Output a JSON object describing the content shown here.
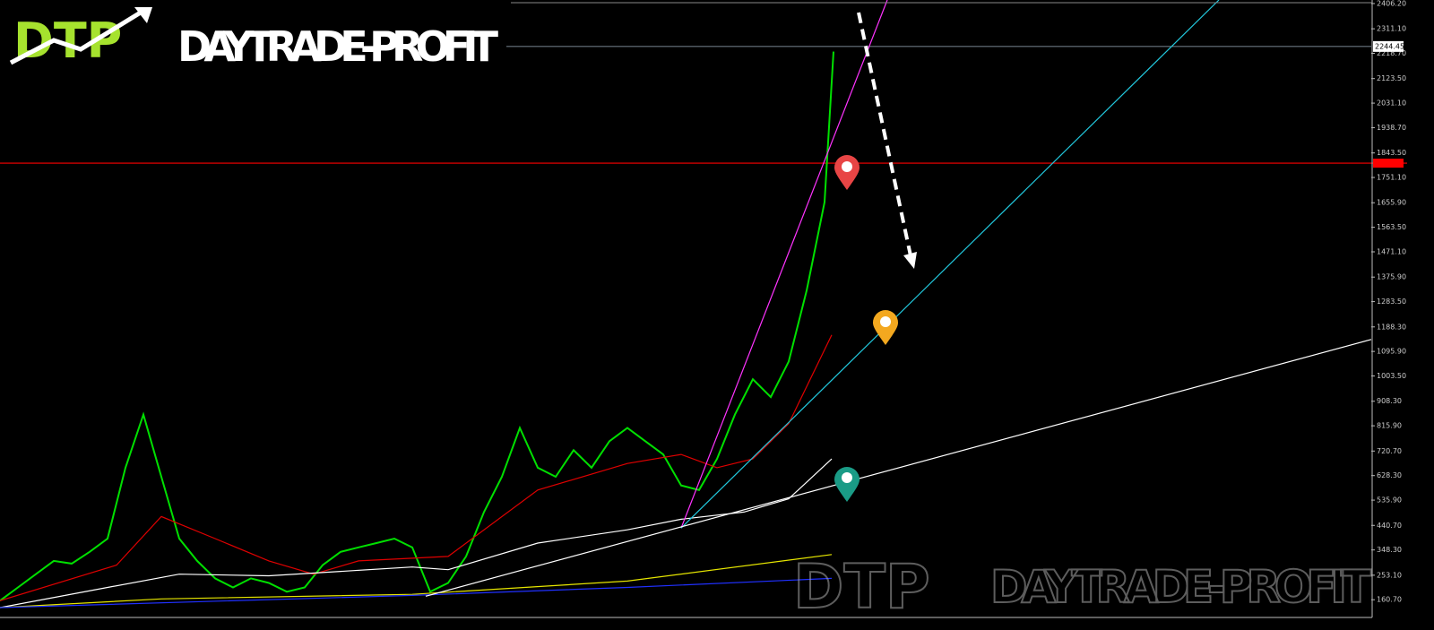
{
  "logo": {
    "mark": "DTP",
    "name": "DAYTRADE-PROFIT"
  },
  "watermark": {
    "mark": "DTP",
    "name": "DAYTRADE-PROFIT"
  },
  "chart_data": {
    "type": "line",
    "xlim": [
      0,
      76.5
    ],
    "ylim": [
      94,
      2419.5
    ],
    "yticks": [
      {
        "value": 2406.2,
        "label": "2406.20"
      },
      {
        "value": 2311.1,
        "label": "2311.10"
      },
      {
        "value": 2218.7,
        "label": "2218.70"
      },
      {
        "value": 2123.5,
        "label": "2123.50"
      },
      {
        "value": 2031.1,
        "label": "2031.10"
      },
      {
        "value": 1938.7,
        "label": "1938.70"
      },
      {
        "value": 1843.5,
        "label": "1843.50"
      },
      {
        "value": 1751.1,
        "label": "1751.10"
      },
      {
        "value": 1655.9,
        "label": "1655.90"
      },
      {
        "value": 1563.5,
        "label": "1563.50"
      },
      {
        "value": 1471.1,
        "label": "1471.10"
      },
      {
        "value": 1375.9,
        "label": "1375.90"
      },
      {
        "value": 1283.5,
        "label": "1283.50"
      },
      {
        "value": 1188.3,
        "label": "1188.30"
      },
      {
        "value": 1095.9,
        "label": "1095.90"
      },
      {
        "value": 1003.5,
        "label": "1003.50"
      },
      {
        "value": 908.3,
        "label": "908.30"
      },
      {
        "value": 815.9,
        "label": "815.90"
      },
      {
        "value": 720.7,
        "label": "720.70"
      },
      {
        "value": 628.3,
        "label": "628.30"
      },
      {
        "value": 535.9,
        "label": "535.90"
      },
      {
        "value": 440.7,
        "label": "440.70"
      },
      {
        "value": 348.3,
        "label": "348.30"
      },
      {
        "value": 253.1,
        "label": "253.10"
      },
      {
        "value": 160.7,
        "label": "160.70"
      }
    ],
    "current_price": 2244.45,
    "levels": [
      {
        "value": 1805,
        "color": "#ff0000"
      }
    ],
    "series": [
      {
        "color": "#00e000",
        "width": 2,
        "x": [
          0,
          1,
          2,
          3,
          4,
          5,
          6,
          7,
          8,
          9,
          10,
          11,
          12,
          13,
          14,
          15,
          16,
          17,
          18,
          19,
          20,
          21,
          22,
          23,
          24,
          25,
          26,
          27,
          28,
          29,
          30,
          31,
          32,
          33,
          34,
          35,
          36,
          37,
          38,
          39,
          40,
          41,
          42,
          43,
          44,
          45,
          46,
          46.5
        ],
        "values": [
          157,
          207,
          257,
          307,
          297,
          341,
          391,
          658,
          858,
          624,
          391,
          307,
          241,
          207,
          241,
          224,
          191,
          207,
          291,
          341,
          358,
          374,
          391,
          358,
          191,
          224,
          324,
          491,
          624,
          808,
          658,
          624,
          724,
          658,
          758,
          808,
          758,
          708,
          591,
          574,
          691,
          858,
          991,
          924,
          1058,
          1325,
          1658,
          2225
        ]
      },
      {
        "color": "#e00000",
        "width": 1.2,
        "x": [
          0,
          6.5,
          9,
          12,
          15,
          17.5,
          20,
          25,
          30,
          35,
          38,
          40,
          42,
          44,
          46.4
        ],
        "values": [
          157,
          291,
          474,
          391,
          307,
          257,
          307,
          324,
          574,
          674,
          708,
          658,
          691,
          824,
          1158
        ]
      },
      {
        "color": "#ffffff",
        "width": 1.2,
        "x": [
          0,
          6,
          10,
          15,
          23,
          25,
          30,
          35,
          38,
          41.5,
          44,
          46.4
        ],
        "values": [
          131,
          207,
          257,
          251,
          284,
          274,
          374,
          424,
          464,
          491,
          541,
          691
        ]
      },
      {
        "color": "#e6e600",
        "width": 1.2,
        "x": [
          0,
          9,
          23,
          35,
          46.4
        ],
        "values": [
          131,
          164,
          181,
          231,
          331
        ]
      },
      {
        "color": "#2030ff",
        "width": 1.2,
        "x": [
          0,
          23,
          35,
          46.4
        ],
        "values": [
          131,
          177,
          207,
          241
        ]
      },
      {
        "color": "#ff33ff",
        "width": 1.2,
        "x": [
          38,
          49.5
        ],
        "values": [
          431,
          2419.5
        ]
      },
      {
        "color": "#22c8dd",
        "width": 1.2,
        "x": [
          38,
          68
        ],
        "values": [
          431,
          2419.5
        ]
      },
      {
        "color": "#ffffff",
        "width": 1.2,
        "x": [
          23.75,
          76.5
        ],
        "values": [
          174,
          1141
        ]
      }
    ]
  }
}
